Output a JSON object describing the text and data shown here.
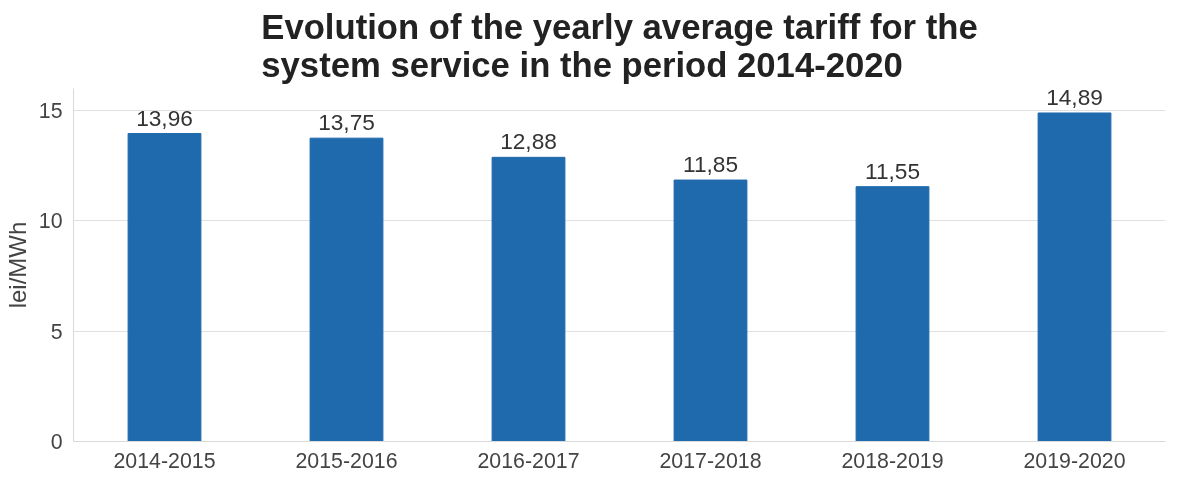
{
  "chart_data": {
    "type": "bar",
    "title": "Evolution of the yearly average tariff for the system service in the period 2014-2020",
    "ylabel": "lei/MWh",
    "categories": [
      "2014-2015",
      "2015-2016",
      "2016-2017",
      "2017-2018",
      "2018-2019",
      "2019-2020"
    ],
    "values": [
      13.96,
      13.75,
      12.88,
      11.85,
      11.55,
      14.89
    ],
    "value_labels": [
      "13,96",
      "13,75",
      "12,88",
      "11,85",
      "11,55",
      "14,89"
    ],
    "color": "#1f69ad",
    "ylim": [
      0,
      16
    ],
    "yticks": [
      0,
      5,
      10,
      15
    ],
    "grid": "y"
  }
}
